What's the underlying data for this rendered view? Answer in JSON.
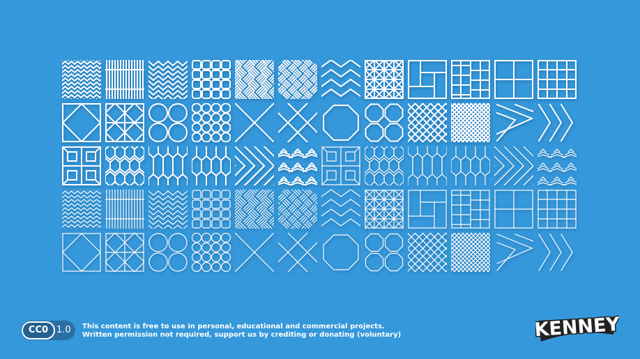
{
  "colors": {
    "background": "#3598da",
    "pattern": "#ffffff",
    "badge": "#2a6fa3"
  },
  "grid": {
    "rows": [
      [
        "zigzag-dense",
        "stripe-blocks",
        "wave-scales",
        "rounded-grid",
        "basket-weave",
        "basket-weave-alt",
        "chevron-zigzag",
        "star-lattice",
        "pinwheel-rectangles",
        "herringbone-bricks",
        "quad-squares",
        "grid-squares"
      ],
      [
        "diamond-in-square",
        "diamond-grid",
        "circles-2x2",
        "circles-4x4",
        "big-x",
        "diamond-cross",
        "octagon",
        "octagons-2x2",
        "diagonal-lattice",
        "diagonal-lattice-dense",
        "chevron-wide",
        "chevron-narrow"
      ],
      [
        "star-tile",
        "honeycomb",
        "elongated-hex",
        "elongated-hex-alt",
        "diagonal-weave",
        "nested-diamonds",
        "star-tile-thin",
        "honeycomb-thin",
        "elongated-hex-thin",
        "elongated-hex-alt-thin",
        "diagonal-weave-thin",
        "nested-diamonds-thin"
      ],
      [
        "zigzag-dense-thin",
        "stripe-blocks-thin",
        "wave-scales-thin",
        "rounded-grid-thin",
        "basket-weave-thin",
        "basket-weave-alt-thin",
        "chevron-zigzag-thin",
        "star-lattice-thin",
        "pinwheel-rectangles-thin",
        "herringbone-bricks-thin",
        "quad-squares-thin",
        "grid-squares-thin"
      ],
      [
        "diamond-in-square-thin",
        "diamond-grid-thin",
        "circles-2x2-thin",
        "circles-4x4-thin",
        "big-x-thin",
        "diamond-cross-thin",
        "octagon-thin",
        "octagons-2x2-thin",
        "diagonal-lattice-thin",
        "diagonal-lattice-dense-thin",
        "chevron-wide-thin",
        "chevron-narrow-thin"
      ]
    ]
  },
  "footer": {
    "license_badge": "CC0",
    "license_version": "1.0",
    "line1": "This content is free to use in personal, educational and commercial projects.",
    "line2": "Written permission not required, support us by crediting or donating (voluntary)",
    "logo": "KENNEY"
  }
}
